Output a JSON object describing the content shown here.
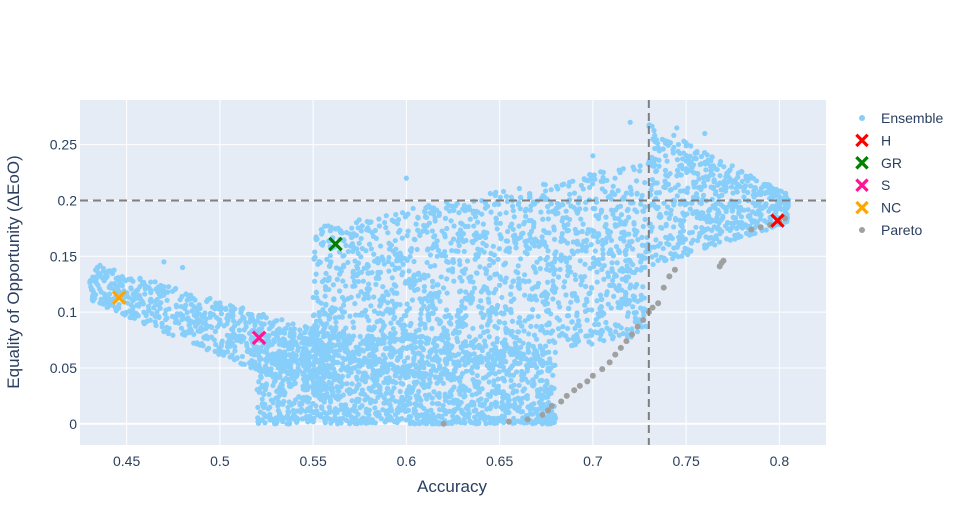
{
  "chart_data": {
    "type": "scatter",
    "xlabel": "Accuracy",
    "ylabel": "Equality of Opportunity (ΔEoO)",
    "xlim": [
      0.425,
      0.825
    ],
    "ylim": [
      -0.019,
      0.29
    ],
    "x_ticks": [
      0.45,
      0.5,
      0.55,
      0.6,
      0.65,
      0.7,
      0.75,
      0.8
    ],
    "x_tick_labels": [
      "0.45",
      "0.5",
      "0.55",
      "0.6",
      "0.65",
      "0.7",
      "0.75",
      "0.8"
    ],
    "y_ticks": [
      0,
      0.05,
      0.1,
      0.15,
      0.2,
      0.25
    ],
    "y_tick_labels": [
      "0",
      "0.05",
      "0.1",
      "0.15",
      "0.2",
      "0.25"
    ],
    "grid": true,
    "legend_position": "right",
    "plot_background": "#e5ecf6",
    "reference_lines": [
      {
        "orientation": "horizontal",
        "value": 0.2,
        "style": "dashed",
        "color": "#7f7f7f"
      },
      {
        "orientation": "vertical",
        "value": 0.73,
        "style": "dashed",
        "color": "#7f7f7f"
      }
    ],
    "series": [
      {
        "name": "Ensemble",
        "marker": "circle",
        "color": "#87cefa",
        "approximate_cloud_regions": [
          {
            "x": [
              0.43,
              0.56
            ],
            "y_low": [
              0.11,
              0.02
            ],
            "y_high": [
              0.145,
              0.08
            ]
          },
          {
            "x": [
              0.52,
              0.68
            ],
            "y_low": [
              0.0,
              0.0
            ],
            "y_high": [
              0.09,
              0.07
            ]
          },
          {
            "x": [
              0.55,
              0.73
            ],
            "y_low": [
              0.02,
              0.08
            ],
            "y_high": [
              0.175,
              0.235
            ]
          },
          {
            "x": [
              0.73,
              0.805
            ],
            "y_low": [
              0.14,
              0.18
            ],
            "y_high": [
              0.27,
              0.205
            ]
          }
        ],
        "sample_points": [
          [
            0.72,
            0.27
          ],
          [
            0.745,
            0.265
          ],
          [
            0.76,
            0.26
          ],
          [
            0.8,
            0.2
          ],
          [
            0.6,
            0.22
          ],
          [
            0.48,
            0.14
          ],
          [
            0.47,
            0.145
          ],
          [
            0.55,
            0.01
          ],
          [
            0.65,
            0.005
          ],
          [
            0.7,
            0.24
          ]
        ]
      },
      {
        "name": "H",
        "marker": "x",
        "color": "#ff0000",
        "x": [
          0.799
        ],
        "y": [
          0.182
        ]
      },
      {
        "name": "GR",
        "marker": "x",
        "color": "#008000",
        "x": [
          0.562
        ],
        "y": [
          0.161
        ]
      },
      {
        "name": "S",
        "marker": "x",
        "color": "#ff1493",
        "x": [
          0.521
        ],
        "y": [
          0.077
        ]
      },
      {
        "name": "NC",
        "marker": "x",
        "color": "#ffa500",
        "x": [
          0.446
        ],
        "y": [
          0.113
        ]
      },
      {
        "name": "Pareto",
        "marker": "circle",
        "color": "#a0a0a0",
        "x": [
          0.62,
          0.655,
          0.665,
          0.673,
          0.676,
          0.678,
          0.683,
          0.686,
          0.69,
          0.693,
          0.697,
          0.7,
          0.705,
          0.709,
          0.712,
          0.715,
          0.718,
          0.721,
          0.724,
          0.727,
          0.73,
          0.732,
          0.735,
          0.738,
          0.741,
          0.744,
          0.768,
          0.769,
          0.77,
          0.785,
          0.79,
          0.795,
          0.8,
          0.803
        ],
        "y": [
          0.0,
          0.002,
          0.004,
          0.008,
          0.012,
          0.016,
          0.02,
          0.025,
          0.03,
          0.034,
          0.038,
          0.043,
          0.049,
          0.055,
          0.062,
          0.068,
          0.074,
          0.08,
          0.087,
          0.093,
          0.1,
          0.104,
          0.108,
          0.122,
          0.132,
          0.138,
          0.141,
          0.144,
          0.146,
          0.174,
          0.176,
          0.178,
          0.181,
          0.184
        ]
      }
    ]
  }
}
